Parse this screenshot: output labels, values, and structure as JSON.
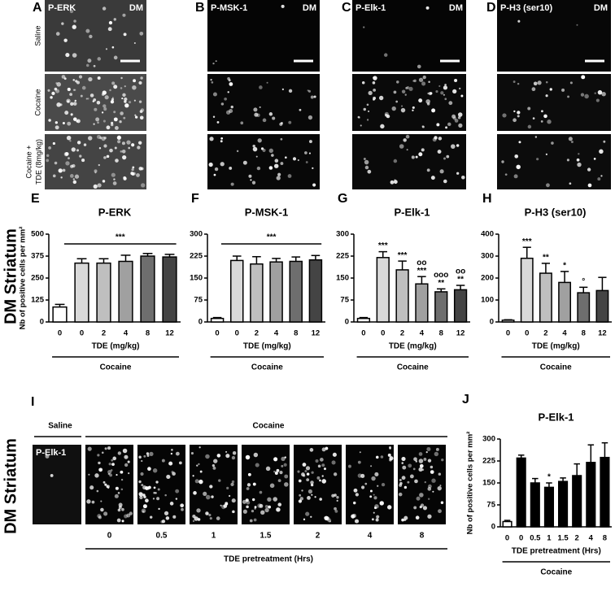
{
  "figure": {
    "panel_letters": [
      "A",
      "B",
      "C",
      "D",
      "E",
      "F",
      "G",
      "H",
      "I",
      "J"
    ],
    "stain_labels": [
      "P-ERK",
      "P-MSK-1",
      "P-Elk-1",
      "P-H3 (ser10)"
    ],
    "region_label": "DM",
    "row_labels": [
      "Saline",
      "Cocaine",
      "Cocaine +",
      "TDE (8mg/kg)"
    ],
    "side_labels": [
      "DM Striatum",
      "DM Striatum"
    ],
    "panel_i": {
      "group_labels": [
        "Saline",
        "Cocaine"
      ],
      "stain_label": "P-Elk-1",
      "times": [
        "0",
        "0.5",
        "1",
        "1.5",
        "2",
        "4",
        "8"
      ],
      "axis_label": "TDE pretreatment (Hrs)"
    }
  },
  "chart_data": [
    {
      "type": "bar",
      "title": "P-ERK",
      "ylabel": "Nb of positive cells per mm²",
      "categories": [
        "0",
        "0",
        "2",
        "4",
        "8",
        "12"
      ],
      "values": [
        85,
        335,
        335,
        345,
        375,
        370
      ],
      "errors": [
        15,
        25,
        25,
        35,
        15,
        15
      ],
      "colors": [
        "#ffffff",
        "#d9d9d9",
        "#bfbfbf",
        "#a0a0a0",
        "#6e6e6e",
        "#444444"
      ],
      "ylim": [
        0,
        500
      ],
      "yticks": [
        0,
        125,
        250,
        375,
        500
      ],
      "xlabel": "TDE (mg/kg)",
      "group_label": "Cocaine",
      "significance": "***"
    },
    {
      "type": "bar",
      "title": "P-MSK-1",
      "categories": [
        "0",
        "0",
        "2",
        "4",
        "8",
        "12"
      ],
      "values": [
        12,
        210,
        198,
        205,
        207,
        212
      ],
      "errors": [
        3,
        15,
        25,
        12,
        15,
        15
      ],
      "colors": [
        "#ffffff",
        "#d9d9d9",
        "#bfbfbf",
        "#a0a0a0",
        "#6e6e6e",
        "#444444"
      ],
      "ylim": [
        0,
        300
      ],
      "yticks": [
        0,
        75,
        150,
        225,
        300
      ],
      "xlabel": "TDE (mg/kg)",
      "group_label": "Cocaine",
      "significance": "***"
    },
    {
      "type": "bar",
      "title": "P-Elk-1",
      "categories": [
        "0",
        "0",
        "2",
        "4",
        "8",
        "12"
      ],
      "values": [
        12,
        220,
        178,
        130,
        103,
        110
      ],
      "errors": [
        3,
        20,
        30,
        25,
        10,
        15
      ],
      "colors": [
        "#ffffff",
        "#d9d9d9",
        "#bfbfbf",
        "#a0a0a0",
        "#6e6e6e",
        "#444444"
      ],
      "ylim": [
        0,
        300
      ],
      "yticks": [
        0,
        75,
        150,
        225,
        300
      ],
      "xlabel": "TDE (mg/kg)",
      "group_label": "Cocaine",
      "annotations": [
        [],
        [
          "***"
        ],
        [
          "***"
        ],
        [
          "oo",
          "***"
        ],
        [
          "ooo",
          "**"
        ],
        [
          "oo",
          "**"
        ]
      ]
    },
    {
      "type": "bar",
      "title": "P-H3 (ser10)",
      "categories": [
        "0",
        "0",
        "2",
        "4",
        "8",
        "12"
      ],
      "values": [
        8,
        290,
        222,
        180,
        133,
        143
      ],
      "errors": [
        2,
        50,
        45,
        50,
        25,
        60
      ],
      "colors": [
        "#ffffff",
        "#d9d9d9",
        "#bfbfbf",
        "#a0a0a0",
        "#6e6e6e",
        "#444444"
      ],
      "ylim": [
        0,
        400
      ],
      "yticks": [
        0,
        100,
        200,
        300,
        400
      ],
      "xlabel": "TDE (mg/kg)",
      "group_label": "Cocaine",
      "annotations": [
        [],
        [
          "***"
        ],
        [
          "**"
        ],
        [
          "*"
        ],
        [
          "°"
        ],
        []
      ]
    },
    {
      "type": "bar",
      "title": "P-Elk-1",
      "ylabel": "Nb of positive cells per mm²",
      "categories": [
        "0",
        "0",
        "0.5",
        "1",
        "1.5",
        "2",
        "4",
        "8"
      ],
      "values": [
        18,
        235,
        150,
        135,
        155,
        175,
        220,
        237
      ],
      "errors": [
        4,
        10,
        15,
        15,
        12,
        40,
        60,
        50
      ],
      "colors": [
        "#ffffff",
        "#000000",
        "#000000",
        "#000000",
        "#000000",
        "#000000",
        "#000000",
        "#000000"
      ],
      "ylim": [
        0,
        300
      ],
      "yticks": [
        0,
        75,
        150,
        225,
        300
      ],
      "xlabel": "TDE pretreatment (Hrs)",
      "group_label": "Cocaine",
      "annotations": [
        [],
        [],
        [],
        [
          "*"
        ],
        [],
        [],
        [],
        []
      ]
    }
  ]
}
